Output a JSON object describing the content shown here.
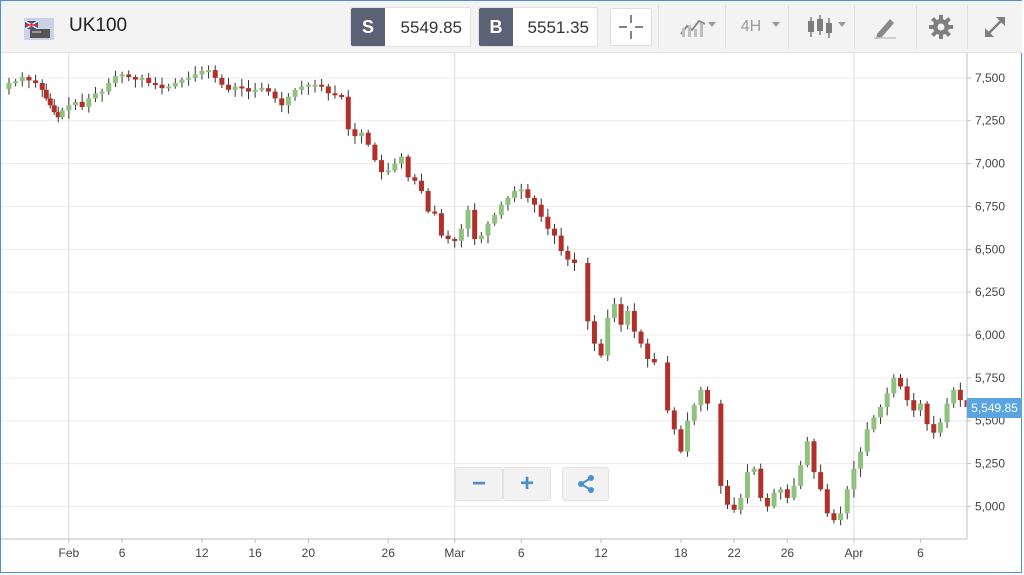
{
  "instrument": {
    "symbol": "UK100",
    "flag_icon": "uk-flag-icon"
  },
  "sell": {
    "letter": "S",
    "price": "5549.85"
  },
  "buy": {
    "letter": "B",
    "price": "5551.35"
  },
  "toolbar": {
    "crosshair_icon": "crosshair-icon",
    "chart_type_icon": "line-chart-icon",
    "timeframe": "4H",
    "candle_icon": "candlestick-icon",
    "draw_icon": "pen-icon",
    "settings_icon": "gear-icon",
    "fullscreen_icon": "expand-icon"
  },
  "controls": {
    "zoom_out": "−",
    "zoom_in": "+",
    "share_icon": "share-icon"
  },
  "colors": {
    "up": "#8fc27e",
    "down": "#b2302a",
    "accent": "#5aa5e0",
    "grid": "#ececec"
  },
  "chart_data": {
    "type": "candlestick",
    "instrument": "UK100",
    "timeframe": "4H",
    "current_price": "5,549.85",
    "y_ticks": [
      "7,500",
      "7,250",
      "7,000",
      "6,750",
      "6,500",
      "6,250",
      "6,000",
      "5,750",
      "5,500",
      "5,250",
      "5,000"
    ],
    "y_tick_values": [
      7500,
      7250,
      7000,
      6750,
      6500,
      6250,
      6000,
      5750,
      5500,
      5250,
      5000
    ],
    "x_ticks": [
      "Feb",
      "6",
      "12",
      "16",
      "20",
      "26",
      "Mar",
      "6",
      "12",
      "18",
      "22",
      "26",
      "Apr",
      "6"
    ],
    "x_tick_values": [
      2,
      6,
      12,
      16,
      20,
      26,
      31,
      36,
      42,
      48,
      52,
      56,
      61,
      66
    ],
    "x_range": [
      -3.1,
      69.5
    ],
    "y_range": [
      4810,
      7645
    ],
    "major_gridlines": [
      2,
      31,
      61
    ],
    "price_series": [
      [
        -3,
        7435
      ],
      [
        -2.5,
        7470
      ],
      [
        -2,
        7480
      ],
      [
        -1.5,
        7505
      ],
      [
        -1,
        7485
      ],
      [
        -0.5,
        7470
      ],
      [
        0,
        7430
      ],
      [
        0.3,
        7380
      ],
      [
        0.6,
        7340
      ],
      [
        0.9,
        7300
      ],
      [
        1.2,
        7270
      ],
      [
        1.5,
        7310
      ],
      [
        2,
        7340
      ],
      [
        2.5,
        7360
      ],
      [
        3,
        7330
      ],
      [
        3.5,
        7380
      ],
      [
        4,
        7410
      ],
      [
        4.5,
        7420
      ],
      [
        5,
        7470
      ],
      [
        5.5,
        7510
      ],
      [
        6,
        7520
      ],
      [
        6.5,
        7505
      ],
      [
        7,
        7490
      ],
      [
        7.5,
        7500
      ],
      [
        8,
        7470
      ],
      [
        8.5,
        7460
      ],
      [
        9,
        7440
      ],
      [
        9.5,
        7450
      ],
      [
        10,
        7470
      ],
      [
        10.5,
        7490
      ],
      [
        11,
        7500
      ],
      [
        11.5,
        7520
      ],
      [
        12,
        7540
      ],
      [
        12.5,
        7545
      ],
      [
        13,
        7500
      ],
      [
        13.5,
        7460
      ],
      [
        14,
        7430
      ],
      [
        14.5,
        7450
      ],
      [
        15,
        7440
      ],
      [
        15.5,
        7420
      ],
      [
        16,
        7430
      ],
      [
        16.5,
        7440
      ],
      [
        17,
        7420
      ],
      [
        17.5,
        7380
      ],
      [
        18,
        7340
      ],
      [
        18.5,
        7390
      ],
      [
        19,
        7430
      ],
      [
        19.5,
        7450
      ],
      [
        20,
        7460
      ],
      [
        20.5,
        7460
      ],
      [
        21,
        7450
      ],
      [
        21.5,
        7410
      ],
      [
        22,
        7400
      ],
      [
        22.5,
        7390
      ],
      [
        23,
        7200
      ],
      [
        23.5,
        7160
      ],
      [
        24,
        7180
      ],
      [
        24.5,
        7110
      ],
      [
        25,
        7020
      ],
      [
        25.5,
        6950
      ],
      [
        26,
        6960
      ],
      [
        26.5,
        7000
      ],
      [
        27,
        7040
      ],
      [
        27.5,
        6920
      ],
      [
        28,
        6900
      ],
      [
        28.5,
        6840
      ],
      [
        29,
        6720
      ],
      [
        29.5,
        6710
      ],
      [
        30,
        6580
      ],
      [
        30.5,
        6560
      ],
      [
        31,
        6550
      ],
      [
        31.5,
        6620
      ],
      [
        32,
        6730
      ],
      [
        32.5,
        6560
      ],
      [
        33,
        6580
      ],
      [
        33.5,
        6650
      ],
      [
        34,
        6700
      ],
      [
        34.5,
        6760
      ],
      [
        35,
        6800
      ],
      [
        35.5,
        6840
      ],
      [
        36,
        6850
      ],
      [
        36.5,
        6800
      ],
      [
        37,
        6760
      ],
      [
        37.5,
        6690
      ],
      [
        38,
        6620
      ],
      [
        38.5,
        6580
      ],
      [
        39,
        6490
      ],
      [
        39.5,
        6440
      ],
      [
        40,
        6420
      ],
      [
        41,
        6080
      ],
      [
        41.5,
        5950
      ],
      [
        42,
        5880
      ],
      [
        42.5,
        6100
      ],
      [
        43,
        6180
      ],
      [
        43.5,
        6060
      ],
      [
        44,
        6140
      ],
      [
        44.5,
        6020
      ],
      [
        45,
        5950
      ],
      [
        45.5,
        5860
      ],
      [
        46,
        5840
      ],
      [
        47,
        5560
      ],
      [
        47.5,
        5450
      ],
      [
        48,
        5320
      ],
      [
        48.5,
        5500
      ],
      [
        49,
        5590
      ],
      [
        49.5,
        5680
      ],
      [
        50,
        5600
      ],
      [
        51,
        5120
      ],
      [
        51.5,
        5010
      ],
      [
        52,
        4980
      ],
      [
        52.5,
        5050
      ],
      [
        53,
        5200
      ],
      [
        53.5,
        5220
      ],
      [
        54,
        5050
      ],
      [
        54.5,
        5000
      ],
      [
        55,
        5080
      ],
      [
        55.5,
        5100
      ],
      [
        56,
        5050
      ],
      [
        56.5,
        5120
      ],
      [
        57,
        5240
      ],
      [
        57.5,
        5380
      ],
      [
        58,
        5200
      ],
      [
        58.5,
        5100
      ],
      [
        59,
        4960
      ],
      [
        59.5,
        4920
      ],
      [
        60,
        4960
      ],
      [
        60.5,
        5100
      ],
      [
        61,
        5220
      ],
      [
        61.5,
        5320
      ],
      [
        62,
        5450
      ],
      [
        62.5,
        5520
      ],
      [
        63,
        5580
      ],
      [
        63.5,
        5660
      ],
      [
        64,
        5750
      ],
      [
        64.5,
        5700
      ],
      [
        65,
        5620
      ],
      [
        65.5,
        5560
      ],
      [
        66,
        5600
      ],
      [
        66.5,
        5480
      ],
      [
        67,
        5430
      ],
      [
        67.5,
        5490
      ],
      [
        68,
        5600
      ],
      [
        68.5,
        5680
      ],
      [
        69,
        5620
      ],
      [
        69.5,
        5580
      ]
    ]
  }
}
